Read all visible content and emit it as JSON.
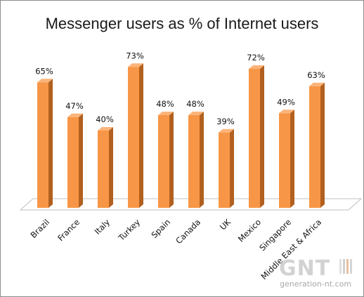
{
  "chart_data": {
    "type": "bar",
    "title": "Messenger users as % of Internet users",
    "categories": [
      "Brazil",
      "France",
      "Italy",
      "Turkey",
      "Spain",
      "Canada",
      "UK",
      "Mexico",
      "Singapore",
      "Middle East & Africa"
    ],
    "values": [
      65,
      47,
      40,
      73,
      48,
      48,
      39,
      72,
      49,
      63
    ],
    "data_labels": [
      "65%",
      "47%",
      "40%",
      "73%",
      "48%",
      "48%",
      "39%",
      "72%",
      "49%",
      "63%"
    ],
    "xlabel": "",
    "ylabel": "",
    "ylim": [
      0,
      75
    ],
    "grid": false,
    "legend": "none",
    "colors": {
      "bar_front": "#f79646",
      "bar_side": "#b1601f",
      "bar_top": "#fbb47a",
      "floor": "#ffffff",
      "floor_edge": "#bfbfbf"
    }
  },
  "watermark": {
    "logo": "GNT",
    "site": "generation-nt.com"
  }
}
